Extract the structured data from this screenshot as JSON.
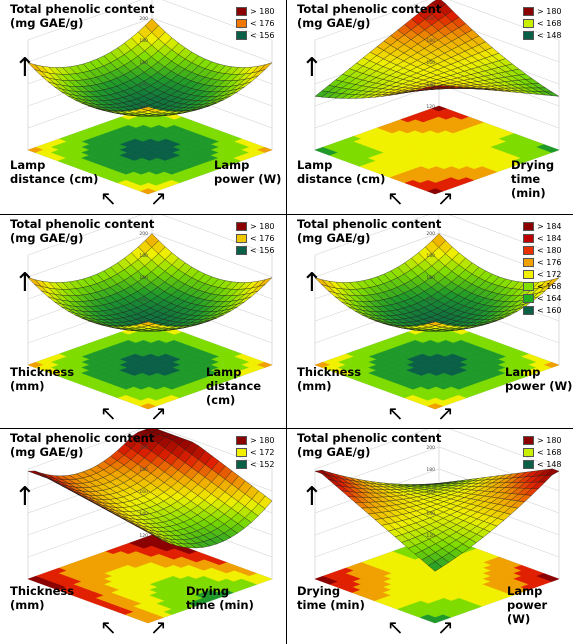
{
  "chart_data": [
    {
      "type": "surface3d",
      "title": "Total phenolic content\n(mg GAE/g)",
      "xlabel": "Lamp\ndistance (cm)",
      "ylabel": "Lamp\npower (W)",
      "zlim": [
        120,
        220
      ],
      "legend": [
        {
          "label": "> 180",
          "color": "#8b0000"
        },
        {
          "label": "< 176",
          "color": "#f07800"
        },
        {
          "label": "< 156",
          "color": "#0a6046"
        }
      ],
      "shape": "bowl"
    },
    {
      "type": "surface3d",
      "title": "Total phenolic content\n(mg GAE/g)",
      "xlabel": "Lamp\ndistance (cm)",
      "ylabel": "Drying\ntime (min)",
      "zlim": [
        120,
        220
      ],
      "legend": [
        {
          "label": "> 180",
          "color": "#8b0000"
        },
        {
          "label": "< 168",
          "color": "#c8f000"
        },
        {
          "label": "< 148",
          "color": "#0a6046"
        }
      ],
      "shape": "saddle"
    },
    {
      "type": "surface3d",
      "title": "Total phenolic content\n(mg GAE/g)",
      "xlabel": "Thickness\n(mm)",
      "ylabel": "Lamp\ndistance (cm)",
      "zlim": [
        120,
        220
      ],
      "legend": [
        {
          "label": "> 180",
          "color": "#8b0000"
        },
        {
          "label": "< 176",
          "color": "#f0c800"
        },
        {
          "label": "< 156",
          "color": "#0a6046"
        }
      ],
      "shape": "bowl"
    },
    {
      "type": "surface3d",
      "title": "Total phenolic content\n(mg GAE/g)",
      "xlabel": "Thickness\n(mm)",
      "ylabel": "Lamp\npower (W)",
      "zlim": [
        120,
        220
      ],
      "legend": [
        {
          "label": "> 184",
          "color": "#8b0000"
        },
        {
          "label": "< 184",
          "color": "#c00000"
        },
        {
          "label": "< 180",
          "color": "#e83000"
        },
        {
          "label": "< 176",
          "color": "#f0a000"
        },
        {
          "label": "< 172",
          "color": "#f0f000"
        },
        {
          "label": "< 168",
          "color": "#80e000"
        },
        {
          "label": "< 164",
          "color": "#20b020"
        },
        {
          "label": "< 160",
          "color": "#0a6046"
        }
      ],
      "shape": "bowl"
    },
    {
      "type": "surface3d",
      "title": "Total phenolic content\n(mg GAE/g)",
      "xlabel": "Thickness\n(mm)",
      "ylabel": "Drying\ntime (min)",
      "zlim": [
        120,
        220
      ],
      "legend": [
        {
          "label": "> 180",
          "color": "#8b0000"
        },
        {
          "label": "< 172",
          "color": "#f0f000"
        },
        {
          "label": "< 152",
          "color": "#0a6046"
        }
      ],
      "shape": "ridge"
    },
    {
      "type": "surface3d",
      "title": "Total phenolic content\n(mg GAE/g)",
      "xlabel": "Drying\ntime (min)",
      "ylabel": "Lamp\npower (W)",
      "zlim": [
        120,
        220
      ],
      "legend": [
        {
          "label": "> 180",
          "color": "#8b0000"
        },
        {
          "label": "< 168",
          "color": "#c8f000"
        },
        {
          "label": "< 148",
          "color": "#0a6046"
        }
      ],
      "shape": "saddle2"
    }
  ],
  "icons": {
    "up_arrow": "↑",
    "diag_arrow_left": "↖",
    "diag_arrow_right": "↗"
  }
}
